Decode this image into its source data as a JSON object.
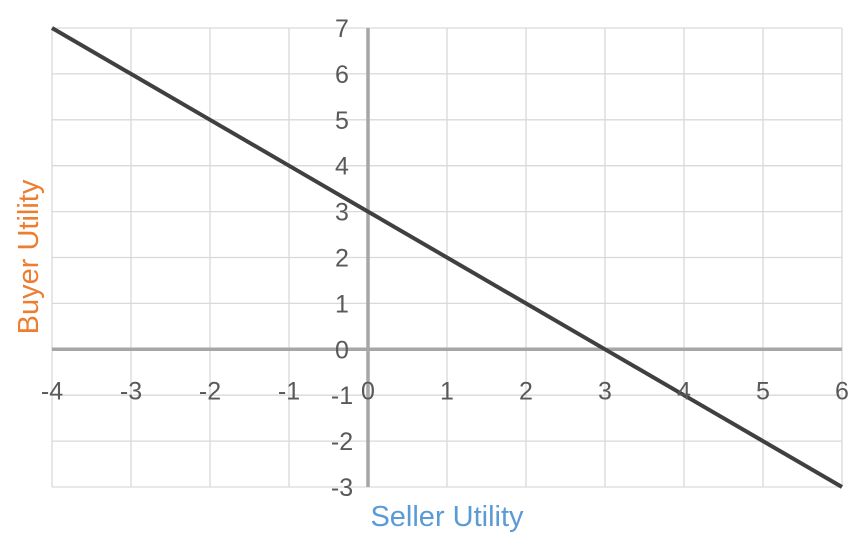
{
  "chart_data": {
    "type": "line",
    "title": "",
    "xlabel": "Seller Utility",
    "ylabel": "Buyer Utility",
    "xlim": [
      -4,
      6
    ],
    "ylim": [
      -3,
      7
    ],
    "x_ticks": [
      "-4",
      "-3",
      "-2",
      "-1",
      "0",
      "1",
      "2",
      "3",
      "4",
      "5",
      "6"
    ],
    "y_ticks": [
      "-3",
      "-2",
      "-1",
      "0",
      "1",
      "2",
      "3",
      "4",
      "5",
      "6",
      "7"
    ],
    "grid": true,
    "legend": "none",
    "series": [
      {
        "x": [
          -4,
          -3,
          -2,
          -1,
          0,
          1,
          2,
          3,
          4,
          5,
          6
        ],
        "y": [
          7,
          6,
          5,
          4,
          3,
          2,
          1,
          0,
          -1,
          -2,
          -3
        ],
        "color": "#404040"
      }
    ],
    "colors": {
      "xlabel": "#5b9bd5",
      "ylabel": "#ed7d31",
      "line": "#404040",
      "grid": "#d9d9d9",
      "axis": "#a6a6a6",
      "tick_text": "#595959"
    }
  }
}
